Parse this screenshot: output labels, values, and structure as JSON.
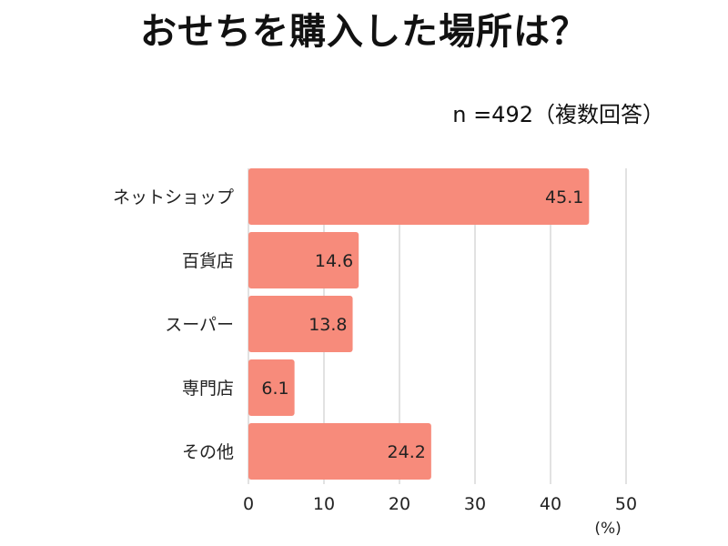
{
  "chart_data": {
    "type": "bar",
    "orientation": "horizontal",
    "title": "おせちを購入した場所は？",
    "subtitle": "n =492（複数回答）",
    "categories": [
      "ネットショップ",
      "百貨店",
      "スーパー",
      "専門店",
      "その他"
    ],
    "values": [
      45.1,
      14.6,
      13.8,
      6.1,
      24.2
    ],
    "value_labels": [
      "45.1",
      "14.6",
      "13.8",
      "6.1",
      "24.2"
    ],
    "xlim": [
      0,
      50
    ],
    "x_ticks": [
      "0",
      "10",
      "20",
      "30",
      "40",
      "50"
    ],
    "x_unit": "(%)",
    "grid": true,
    "bar_color": "#f78b7b"
  }
}
